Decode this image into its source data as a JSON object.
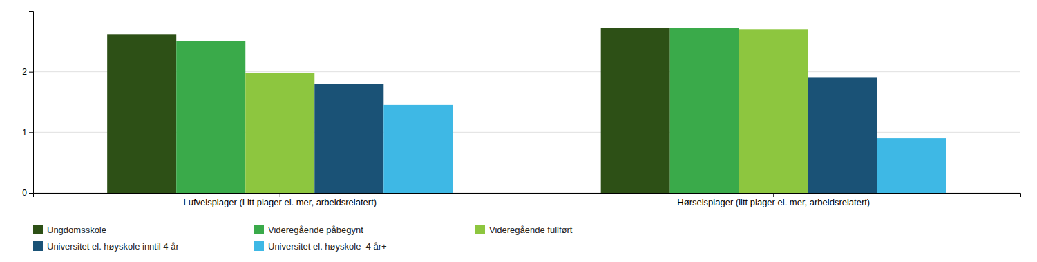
{
  "chart_data": {
    "type": "bar",
    "categories": [
      "Lufveisplager (Litt plager el. mer, arbeidsrelatert)",
      "Hørselsplager (litt plager el. mer, arbeidsrelatert)"
    ],
    "series": [
      {
        "name": "Ungdomsskole",
        "color": "#2d5016",
        "values": [
          2.62,
          2.72
        ]
      },
      {
        "name": "Videregående påbegynt",
        "color": "#3aaa4a",
        "values": [
          2.5,
          2.72
        ]
      },
      {
        "name": "Videregående fullført",
        "color": "#8dc63f",
        "values": [
          1.98,
          2.7
        ]
      },
      {
        "name": "Universitet el. høyskole inntil 4 år",
        "color": "#1a5276",
        "values": [
          1.8,
          1.9
        ]
      },
      {
        "name": "Universitet el. høyskole  4 år+",
        "color": "#3eb8e5",
        "values": [
          1.45,
          0.9
        ]
      }
    ],
    "ylim": [
      0,
      3.0
    ],
    "yticks": [
      0,
      1,
      2
    ],
    "grid": true,
    "legend": "bottom"
  }
}
